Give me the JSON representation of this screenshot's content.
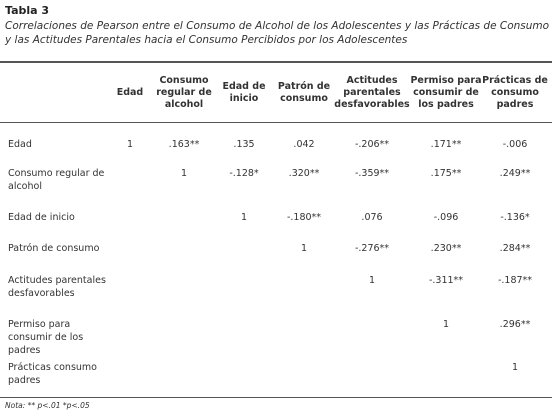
{
  "header": {
    "label": "Tabla 3",
    "caption_line1": "Correlaciones de Pearson entre el Consumo de Alcohol de los Adolescentes y las Prácticas de Consumo",
    "caption_line2": "y las Actitudes Parentales hacia el Consumo Percibidos por los Adolescentes"
  },
  "table": {
    "columns": [
      "Edad",
      "Consumo regular de alcohol",
      "Edad de inicio",
      "Patrón de consumo",
      "Actitudes parentales desfavorables",
      "Permiso para consumir de los padres",
      "Prácticas de consumo padres"
    ],
    "rows": [
      {
        "label": "Edad",
        "cells": [
          "1",
          ".163**",
          ".135",
          ".042",
          "-.206**",
          ".171**",
          "-.006"
        ]
      },
      {
        "label": "Consumo regular de alcohol",
        "cells": [
          null,
          "1",
          "-.128*",
          ".320**",
          "-.359**",
          ".175**",
          ".249**"
        ]
      },
      {
        "label": "Edad de inicio",
        "cells": [
          null,
          null,
          "1",
          "-.180**",
          ".076",
          "-.096",
          "-.136*"
        ]
      },
      {
        "label": "Patrón de consumo",
        "cells": [
          null,
          null,
          null,
          "1",
          "-.276**",
          ".230**",
          ".284**"
        ]
      },
      {
        "label": "Actitudes parentales desfavorables",
        "cells": [
          null,
          null,
          null,
          null,
          "1",
          "-.311**",
          "-.187**"
        ]
      },
      {
        "label": "Permiso para consumir de los padres",
        "cells": [
          null,
          null,
          null,
          null,
          null,
          "1",
          ".296**"
        ]
      },
      {
        "label": "Prácticas consumo padres",
        "cells": [
          null,
          null,
          null,
          null,
          null,
          null,
          "1"
        ]
      }
    ]
  },
  "note": "Nota: ** p<.01 *p<.05"
}
